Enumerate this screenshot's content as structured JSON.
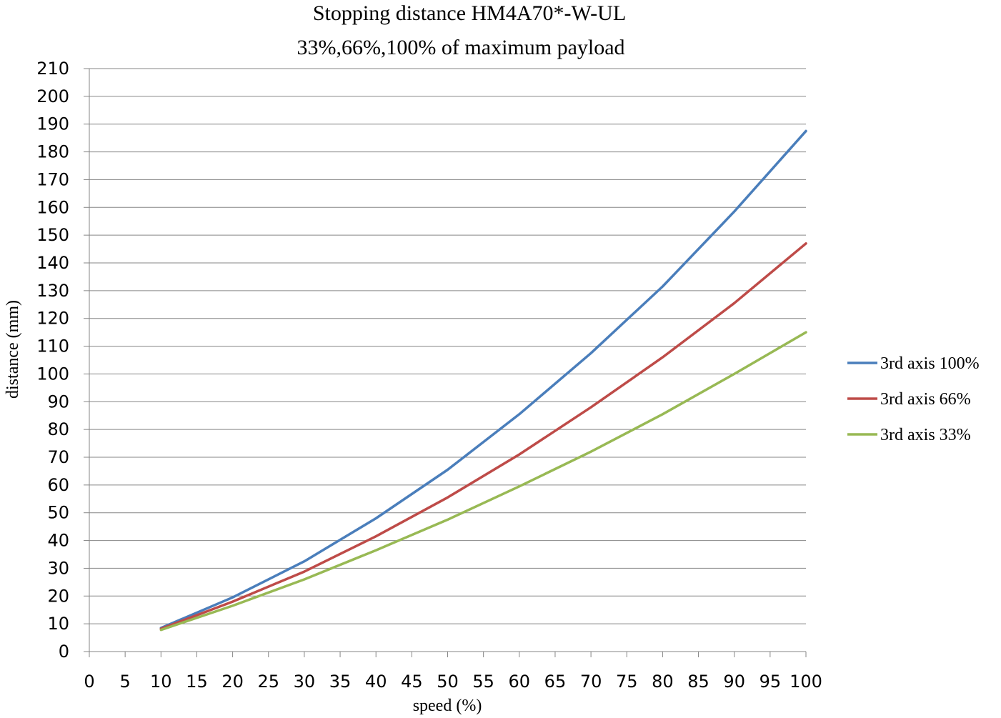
{
  "chart_data": {
    "type": "line",
    "title": "Stopping distance HM4A70*-W-UL",
    "subtitle": "33%,66%,100% of maximum payload",
    "xlabel": "speed (%)",
    "ylabel": "distance (mm)",
    "xlim": [
      0,
      100
    ],
    "ylim": [
      0,
      210
    ],
    "x_ticks": [
      "0",
      "5",
      "10",
      "15",
      "20",
      "25",
      "30",
      "35",
      "40",
      "45",
      "50",
      "55",
      "60",
      "65",
      "70",
      "75",
      "80",
      "85",
      "90",
      "95",
      "100"
    ],
    "y_ticks": [
      "0",
      "10",
      "20",
      "30",
      "40",
      "50",
      "60",
      "70",
      "80",
      "90",
      "100",
      "110",
      "120",
      "130",
      "140",
      "150",
      "160",
      "170",
      "180",
      "190",
      "200",
      "210"
    ],
    "grid": "horizontal",
    "legend_position": "right",
    "x": [
      10,
      20,
      30,
      40,
      50,
      60,
      70,
      80,
      90,
      100
    ],
    "series": [
      {
        "name": "3rd axis 100%",
        "color": "#4A7EBB",
        "values": [
          8.5,
          19.5,
          32.5,
          48,
          65.5,
          85.5,
          107.5,
          131.5,
          158.5,
          187.5
        ]
      },
      {
        "name": "3rd axis 66%",
        "color": "#BE4B48",
        "values": [
          8.2,
          18,
          28.8,
          41.5,
          55.5,
          71,
          88,
          106,
          125.5,
          147
        ]
      },
      {
        "name": "3rd axis 33%",
        "color": "#98B954",
        "values": [
          7.8,
          16.5,
          26,
          36.5,
          47.5,
          59.5,
          72,
          85.5,
          100,
          115
        ]
      }
    ]
  }
}
